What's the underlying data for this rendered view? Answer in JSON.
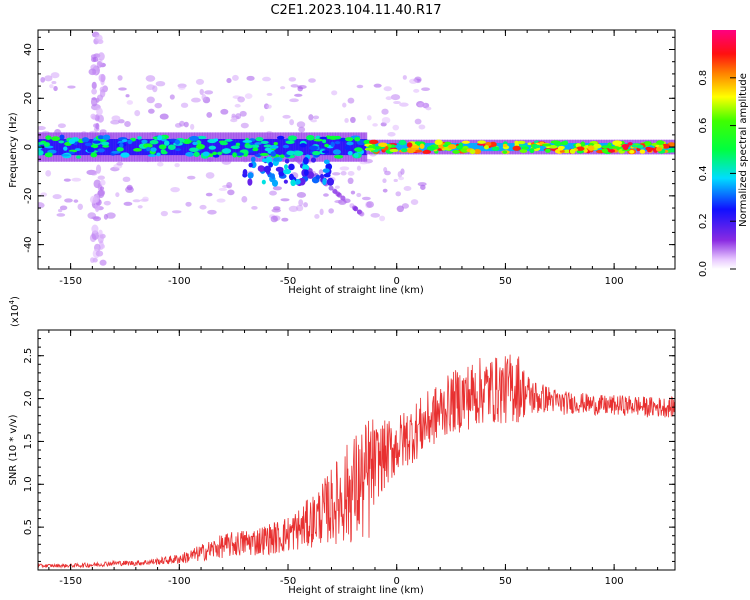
{
  "title": "C2E1.2023.104.11.40.R17",
  "chart_data": [
    {
      "type": "heatmap",
      "xlabel": "Height of straight line (km)",
      "ylabel": "Frequency (Hz)",
      "xlim": [
        -165,
        128
      ],
      "ylim": [
        -50,
        48
      ],
      "xticks": [
        -150,
        -100,
        -50,
        0,
        50,
        100
      ],
      "yticks": [
        -40,
        -20,
        0,
        20,
        40
      ],
      "colorbar": {
        "label": "Normalized spectral amplitude",
        "range": [
          0,
          1
        ],
        "ticks": [
          "0.0",
          "0.2",
          "0.4",
          "0.6",
          "0.8"
        ],
        "colormap": "rainbow: white-violet (0) - blue - cyan - green - yellow - orange - red - magenta (1)"
      },
      "description_values": {
        "band_center_hz": 0,
        "band_halfwidth_hz_left": 6,
        "band_halfwidth_hz_right": 3,
        "max_amplitude_region_km": [
          -15,
          110
        ],
        "scattered_low_amplitude_x_km": [
          -140,
          -135
        ]
      }
    },
    {
      "type": "line",
      "xlabel": "Height of straight line (km)",
      "ylabel": "SNR (10 * v/v)",
      "y_multiplier": "(x10",
      "y_multiplier_exp": "4",
      "y_multiplier_close": ")",
      "xlim": [
        -165,
        128
      ],
      "ylim": [
        0,
        2.8
      ],
      "xticks": [
        -150,
        -100,
        -50,
        0,
        50,
        100
      ],
      "yticks": [
        "0.5",
        "1.0",
        "1.5",
        "2.0",
        "2.5"
      ],
      "color": "#e83030",
      "series": [
        {
          "x": [
            -165,
            -150,
            -140,
            -130,
            -120,
            -110,
            -100,
            -95,
            -90,
            -85,
            -80,
            -75,
            -70,
            -65,
            -60,
            -55,
            -50,
            -45,
            -40,
            -35,
            -30,
            -25,
            -20,
            -15,
            -12,
            -10,
            -5,
            0,
            5,
            10,
            15,
            20,
            25,
            30,
            35,
            40,
            45,
            50,
            55,
            60,
            65,
            70,
            75,
            80,
            85,
            90,
            95,
            100,
            105,
            110,
            115,
            120,
            128
          ],
          "y": [
            0.05,
            0.05,
            0.06,
            0.08,
            0.08,
            0.1,
            0.13,
            0.16,
            0.2,
            0.24,
            0.28,
            0.3,
            0.32,
            0.33,
            0.36,
            0.38,
            0.42,
            0.48,
            0.55,
            0.65,
            0.75,
            0.85,
            0.95,
            1.0,
            1.1,
            1.25,
            1.35,
            1.45,
            1.55,
            1.65,
            1.75,
            1.85,
            1.95,
            2.0,
            2.05,
            2.1,
            2.1,
            2.1,
            2.15,
            2.05,
            2.0,
            2.0,
            1.95,
            1.95,
            1.95,
            1.93,
            1.92,
            1.92,
            1.92,
            1.92,
            1.9,
            1.9,
            1.9
          ],
          "noise_amplitude": [
            0.02,
            0.02,
            0.03,
            0.03,
            0.03,
            0.04,
            0.06,
            0.08,
            0.1,
            0.12,
            0.14,
            0.15,
            0.16,
            0.17,
            0.18,
            0.2,
            0.22,
            0.25,
            0.3,
            0.35,
            0.45,
            0.55,
            0.65,
            0.7,
            0.8,
            0.45,
            0.4,
            0.35,
            0.35,
            0.35,
            0.35,
            0.35,
            0.35,
            0.4,
            0.4,
            0.4,
            0.4,
            0.4,
            0.45,
            0.25,
            0.2,
            0.15,
            0.15,
            0.13,
            0.12,
            0.12,
            0.12,
            0.12,
            0.12,
            0.12,
            0.12,
            0.12,
            0.12
          ]
        }
      ]
    }
  ]
}
